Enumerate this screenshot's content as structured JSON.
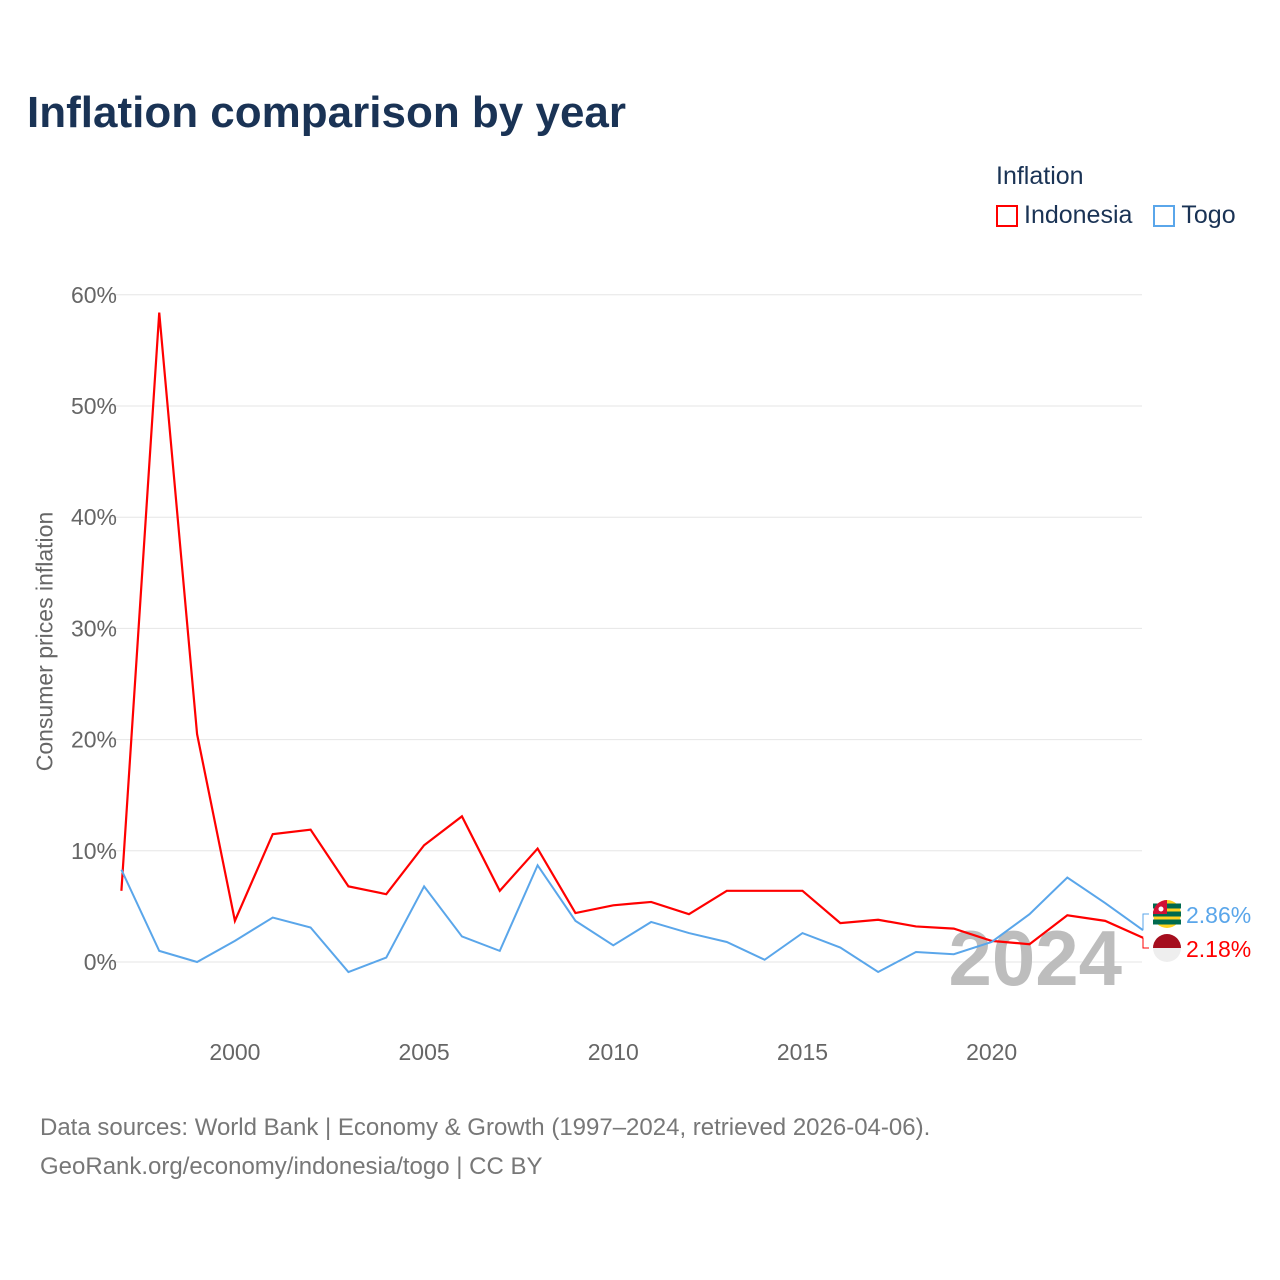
{
  "chart_data": {
    "type": "line",
    "title": "Inflation comparison by year",
    "ylabel": "Consumer prices inflation",
    "xlabel": "",
    "ylim": [
      -5,
      60
    ],
    "xlim": [
      1997,
      2024
    ],
    "y_ticks": [
      "0%",
      "10%",
      "20%",
      "30%",
      "40%",
      "50%",
      "60%"
    ],
    "x_ticks": [
      "2000",
      "2005",
      "2010",
      "2015",
      "2020"
    ],
    "grid": true,
    "legend_title": "Inflation",
    "legend_position": "top-right",
    "year_watermark": "2024",
    "x": [
      1997,
      1998,
      1999,
      2000,
      2001,
      2002,
      2003,
      2004,
      2005,
      2006,
      2007,
      2008,
      2009,
      2010,
      2011,
      2012,
      2013,
      2014,
      2015,
      2016,
      2017,
      2018,
      2019,
      2020,
      2021,
      2022,
      2023,
      2024
    ],
    "series": [
      {
        "name": "Indonesia",
        "color": "#ff0000",
        "end_label": "2.18%",
        "values": [
          6.4,
          58.4,
          20.5,
          3.7,
          11.5,
          11.9,
          6.8,
          6.1,
          10.5,
          13.1,
          6.4,
          10.2,
          4.4,
          5.1,
          5.4,
          4.3,
          6.4,
          6.4,
          6.4,
          3.5,
          3.8,
          3.2,
          3.0,
          1.9,
          1.6,
          4.2,
          3.7,
          2.18
        ]
      },
      {
        "name": "Togo",
        "color": "#5aa6ea",
        "end_label": "2.86%",
        "values": [
          8.3,
          1.0,
          0.0,
          1.9,
          4.0,
          3.1,
          -0.9,
          0.4,
          6.8,
          2.3,
          1.0,
          8.7,
          3.7,
          1.5,
          3.6,
          2.6,
          1.8,
          0.2,
          2.6,
          1.3,
          -0.9,
          0.9,
          0.7,
          1.8,
          4.3,
          7.6,
          5.3,
          2.86
        ]
      }
    ]
  },
  "source": {
    "line1": "Data sources: World Bank | Economy & Growth (1997–2024, retrieved 2026-04-06).",
    "line2": "GeoRank.org/economy/indonesia/togo | CC BY"
  }
}
